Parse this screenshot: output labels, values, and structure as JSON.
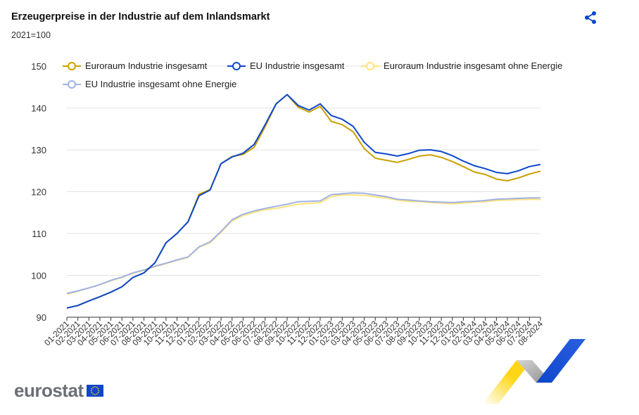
{
  "header": {
    "title": "Erzeugerpreise in der Industrie auf dem Inlandsmarkt",
    "subtitle": "2021=100",
    "share_icon": "share-icon"
  },
  "footer": {
    "logo_text": "eurostat",
    "flag_icon": "eu-flag-icon"
  },
  "chart_data": {
    "type": "line",
    "ylim": [
      90,
      150
    ],
    "yticks": [
      90,
      100,
      110,
      120,
      130,
      140,
      150
    ],
    "grid": true,
    "legend_position": "top-left",
    "x": [
      "01-2021",
      "02-2021",
      "03-2021",
      "04-2021",
      "05-2021",
      "06-2021",
      "07-2021",
      "08-2021",
      "09-2021",
      "10-2021",
      "11-2021",
      "12-2021",
      "01-2022",
      "02-2022",
      "03-2022",
      "04-2022",
      "05-2022",
      "06-2022",
      "07-2022",
      "08-2022",
      "09-2022",
      "10-2022",
      "11-2022",
      "12-2022",
      "01-2023",
      "02-2023",
      "03-2023",
      "04-2023",
      "05-2023",
      "06-2023",
      "07-2023",
      "08-2023",
      "09-2023",
      "10-2023",
      "11-2023",
      "12-2023",
      "01-2024",
      "02-2024",
      "03-2024",
      "04-2024",
      "05-2024",
      "06-2024",
      "07-2024",
      "08-2024"
    ],
    "series": [
      {
        "name": "Euroraum Industrie insgesamt",
        "color": "#c9a000",
        "values": [
          92.2,
          92.8,
          93.9,
          94.9,
          96.0,
          97.3,
          99.5,
          100.6,
          103.0,
          107.8,
          110.0,
          112.8,
          119.4,
          120.5,
          126.7,
          128.4,
          128.9,
          130.6,
          135.5,
          141.0,
          143.2,
          140.2,
          139.0,
          140.4,
          136.8,
          136.0,
          134.3,
          130.3,
          128.0,
          127.5,
          127.0,
          127.7,
          128.5,
          128.8,
          128.2,
          127.2,
          126.0,
          124.7,
          124.1,
          123.0,
          122.6,
          123.3,
          124.2,
          124.9
        ]
      },
      {
        "name": "EU Industrie insgesamt",
        "color": "#0e47cb",
        "values": [
          92.2,
          92.8,
          93.9,
          94.9,
          96.0,
          97.3,
          99.5,
          100.6,
          103.0,
          107.8,
          110.0,
          112.8,
          119.0,
          120.4,
          126.7,
          128.3,
          129.2,
          131.3,
          136.0,
          141.0,
          143.2,
          140.6,
          139.5,
          141.0,
          138.2,
          137.3,
          135.6,
          131.8,
          129.4,
          129.0,
          128.5,
          129.1,
          129.9,
          130.0,
          129.6,
          128.6,
          127.3,
          126.2,
          125.5,
          124.6,
          124.3,
          125.0,
          126.0,
          126.5
        ]
      },
      {
        "name": "Euroraum Industrie insgesamt ohne Energie",
        "color": "#ffe47a",
        "values": [
          95.5,
          96.2,
          97.0,
          97.8,
          98.7,
          99.5,
          100.5,
          101.2,
          102.1,
          102.8,
          103.6,
          104.3,
          106.7,
          107.8,
          110.3,
          113.0,
          114.3,
          115.1,
          115.7,
          116.0,
          116.5,
          117.0,
          117.2,
          117.4,
          118.8,
          119.2,
          119.2,
          119.1,
          118.8,
          118.5,
          118.0,
          117.7,
          117.6,
          117.4,
          117.3,
          117.1,
          117.3,
          117.5,
          117.6,
          117.9,
          118.0,
          118.1,
          118.2,
          118.1
        ]
      },
      {
        "name": "EU Industrie insgesamt ohne Energie",
        "color": "#a0b2e6",
        "values": [
          95.7,
          96.3,
          97.0,
          97.8,
          98.8,
          99.6,
          100.6,
          101.3,
          102.2,
          102.9,
          103.7,
          104.4,
          106.8,
          108.0,
          110.5,
          113.3,
          114.6,
          115.4,
          116.0,
          116.5,
          117.0,
          117.6,
          117.7,
          117.8,
          119.3,
          119.5,
          119.7,
          119.6,
          119.2,
          118.8,
          118.2,
          118.0,
          117.8,
          117.6,
          117.5,
          117.4,
          117.6,
          117.7,
          117.9,
          118.2,
          118.3,
          118.4,
          118.5,
          118.5
        ]
      }
    ]
  }
}
